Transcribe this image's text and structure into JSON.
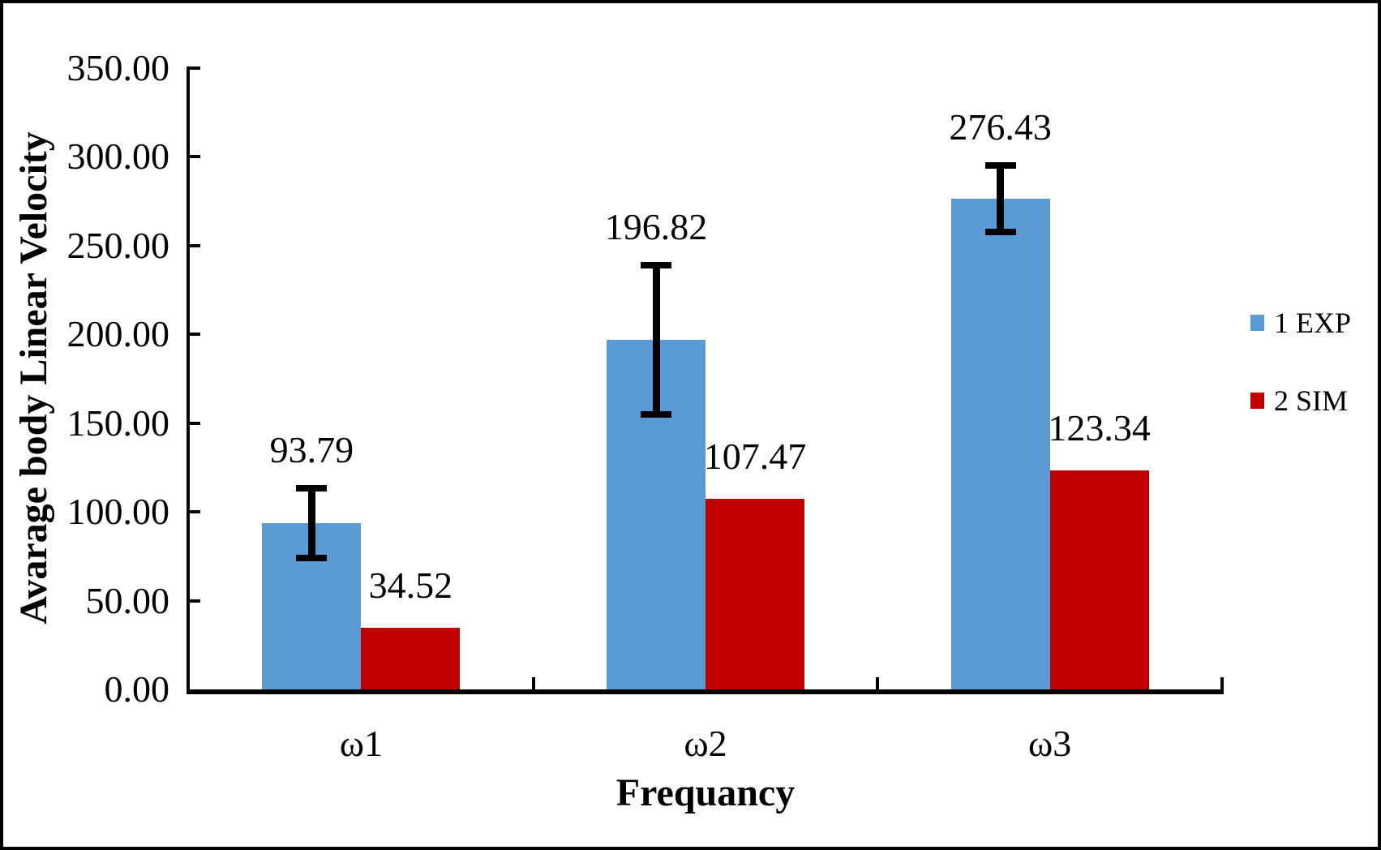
{
  "chart_data": {
    "type": "bar",
    "title": "",
    "categories": [
      "ω1",
      "ω2",
      "ω3"
    ],
    "series": [
      {
        "name": "1 EXP",
        "color": "#5B9BD5",
        "values": [
          93.79,
          196.82,
          276.43
        ],
        "data_labels": [
          "93.79",
          "196.82",
          "276.43"
        ],
        "error_bars": [
          20,
          42.5,
          19
        ]
      },
      {
        "name": "2 SIM",
        "color": "#C00000",
        "values": [
          34.52,
          107.47,
          123.34
        ],
        "data_labels": [
          "34.52",
          "107.47",
          "123.34"
        ],
        "error_bars": null
      }
    ],
    "xlabel": "Frequancy",
    "ylabel": "Avarage body Linear Velocity",
    "ylim": [
      0,
      350
    ],
    "ytick_step": 50,
    "ytick_labels": [
      "0.00",
      "50.00",
      "100.00",
      "150.00",
      "200.00",
      "250.00",
      "300.00",
      "350.00"
    ],
    "grid": false,
    "legend_position": "right",
    "error_bar_color": "#000000",
    "axis_color": "#000000",
    "background_color": "#FFFFFF"
  }
}
